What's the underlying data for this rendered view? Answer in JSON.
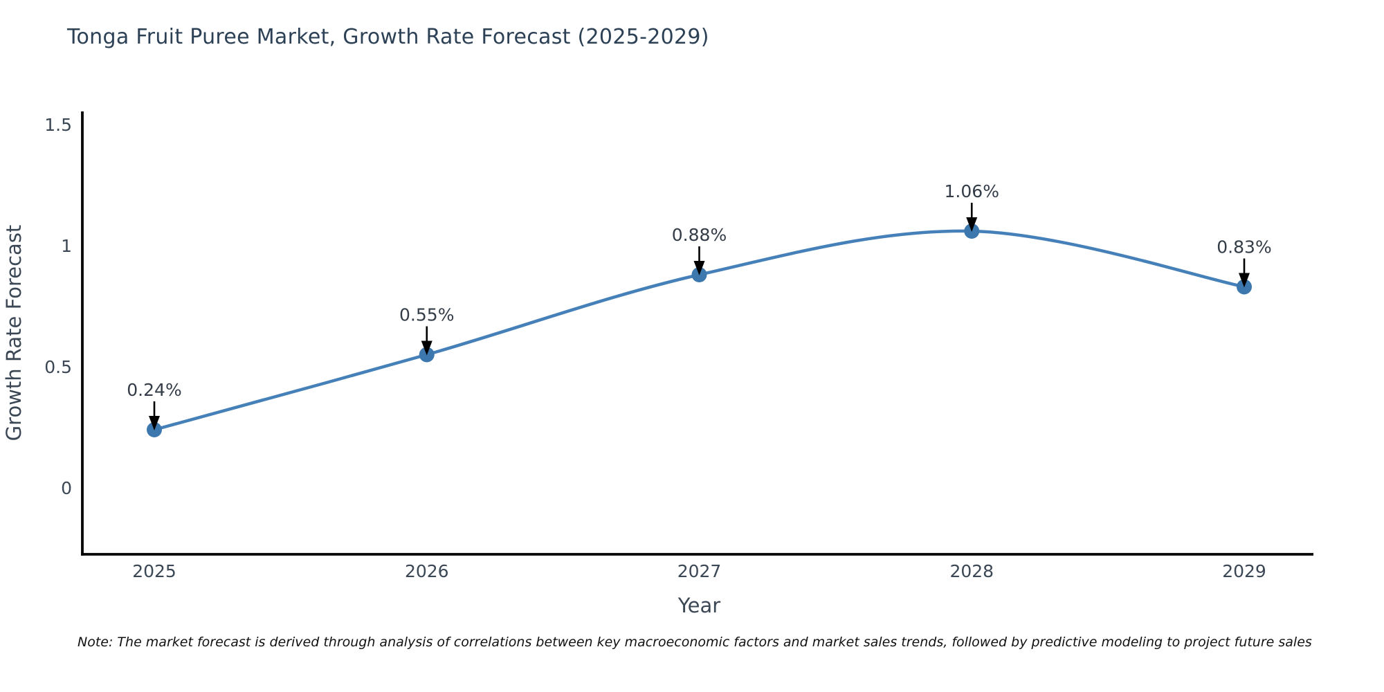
{
  "title": "Tonga Fruit Puree Market, Growth Rate Forecast (2025-2029)",
  "note": "Note: The market forecast is derived through analysis of correlations between key macroeconomic factors and market sales trends, followed by predictive modeling to project future sales",
  "chart_data": {
    "type": "line",
    "title": "Tonga Fruit Puree Market, Growth Rate Forecast (2025-2029)",
    "x": [
      "2025",
      "2026",
      "2027",
      "2028",
      "2029"
    ],
    "values": [
      0.24,
      0.55,
      0.88,
      1.06,
      0.83
    ],
    "point_labels": [
      "0.24%",
      "0.55%",
      "0.88%",
      "1.06%",
      "0.83%"
    ],
    "xlabel": "Year",
    "ylabel": "Growth Rate Forecast",
    "yticks": [
      0,
      0.5,
      1,
      1.5
    ],
    "ytick_labels": [
      "0",
      "0.5",
      "1",
      "1.5"
    ],
    "ylim": [
      -0.27,
      1.55
    ],
    "grid": false,
    "legend": "none",
    "line_color": "#4581b8",
    "marker_color": "#3c77ad",
    "axis_color": "#000000",
    "annotation_arrow_color": "#000000",
    "annotation_style": "text above point with downward black arrow"
  },
  "colors": {
    "background": "#ffffff",
    "title_text": "#2d4156",
    "tick_text": "#3b4754",
    "note_text": "#111111"
  }
}
